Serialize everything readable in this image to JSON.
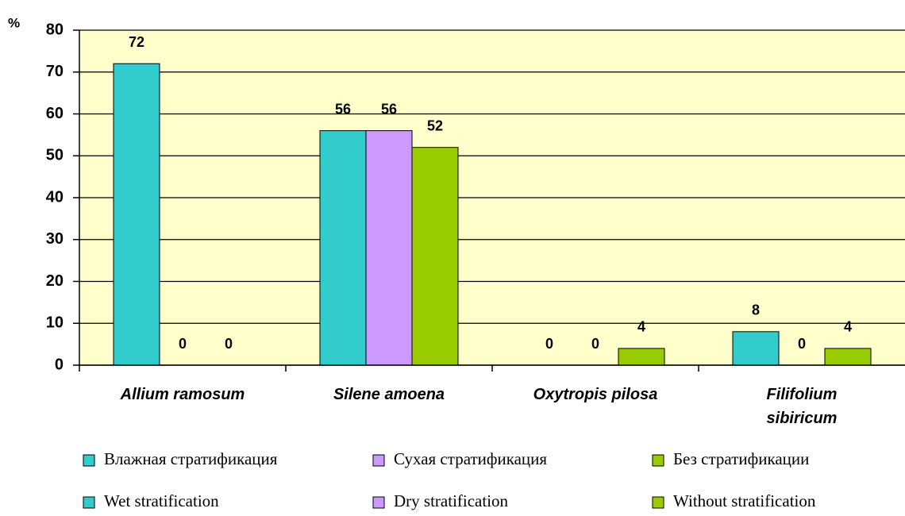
{
  "chart_data": {
    "type": "bar",
    "y_unit": "%",
    "categories": [
      "Allium ramosum",
      "Silene amoena",
      "Oxytropis pilosa",
      "Filifolium\nsibiricum"
    ],
    "series": [
      {
        "name": "Влажная стратификация",
        "name_en": "Wet stratification",
        "color": "#33cccc",
        "values": [
          72,
          56,
          0,
          8
        ]
      },
      {
        "name": "Сухая стратификация",
        "name_en": "Dry stratification",
        "color": "#cc99ff",
        "values": [
          0,
          56,
          0,
          0
        ]
      },
      {
        "name": "Без стратификации",
        "name_en": "Without stratification",
        "color": "#99cc00",
        "values": [
          0,
          52,
          4,
          4
        ]
      }
    ],
    "ylim": [
      0,
      80
    ],
    "yticks": [
      0,
      10,
      20,
      30,
      40,
      50,
      60,
      70,
      80
    ],
    "grid": true,
    "plot_background": "#ffffcc"
  }
}
